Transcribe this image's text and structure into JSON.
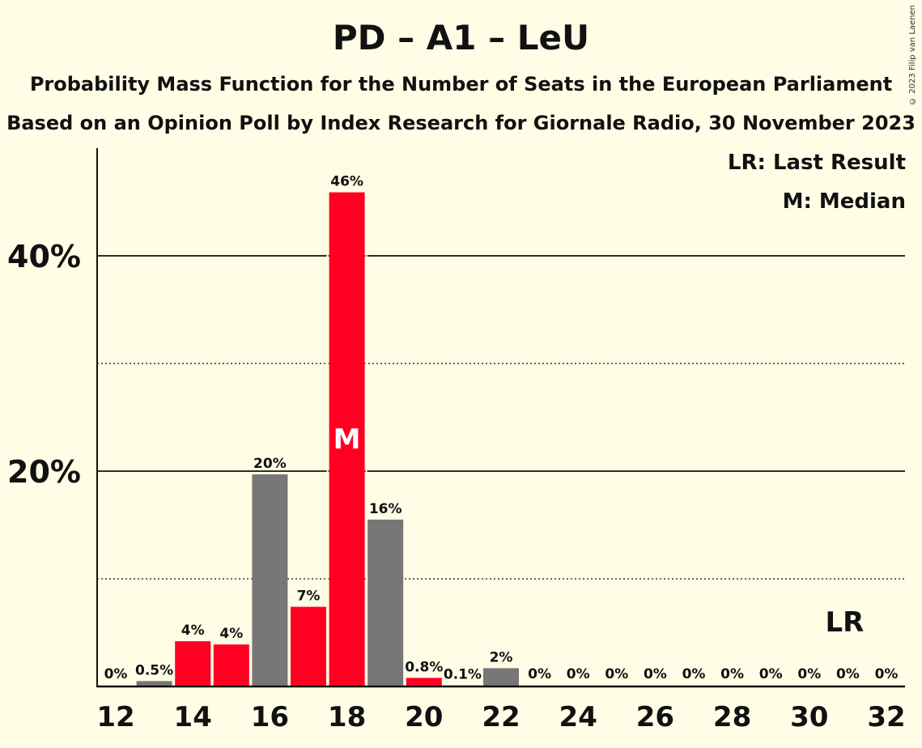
{
  "title": "PD – A1 – LeU",
  "subtitle1": "Probability Mass Function for the Number of Seats in the European Parliament",
  "subtitle2": "Based on an Opinion Poll by Index Research for Giornale Radio, 30 November 2023",
  "copyright": "© 2023 Filip van Laenen",
  "legend": {
    "last_result": "LR: Last Result",
    "median": "M: Median"
  },
  "colors": {
    "red": "#FF0022",
    "grey": "#777777",
    "background": "#FFFDE6"
  },
  "chart_data": {
    "type": "bar",
    "x": [
      12,
      13,
      14,
      15,
      16,
      17,
      18,
      19,
      20,
      21,
      22,
      23,
      24,
      25,
      26,
      27,
      28,
      29,
      30,
      31,
      32
    ],
    "values": [
      0,
      0.5,
      4.2,
      3.9,
      19.7,
      7.4,
      45.9,
      15.5,
      0.8,
      0.1,
      1.7,
      0,
      0,
      0,
      0,
      0,
      0,
      0,
      0,
      0,
      0
    ],
    "labels": [
      "0%",
      "0.5%",
      "4%",
      "4%",
      "20%",
      "7%",
      "46%",
      "16%",
      "0.8%",
      "0.1%",
      "2%",
      "0%",
      "0%",
      "0%",
      "0%",
      "0%",
      "0%",
      "0%",
      "0%",
      "0%",
      "0%"
    ],
    "bar_colors": [
      "grey",
      "grey",
      "red",
      "red",
      "grey",
      "red",
      "red",
      "grey",
      "red",
      "grey",
      "grey",
      "grey",
      "grey",
      "grey",
      "grey",
      "grey",
      "grey",
      "grey",
      "grey",
      "grey",
      "grey"
    ],
    "xticks": [
      "12",
      "14",
      "16",
      "18",
      "20",
      "22",
      "24",
      "26",
      "28",
      "30",
      "32"
    ],
    "yticks": [
      {
        "value": 20,
        "label": "20%"
      },
      {
        "value": 40,
        "label": "40%"
      }
    ],
    "minor_gridlines": [
      10,
      30
    ],
    "ylim": [
      0,
      50
    ],
    "median": {
      "x": 18,
      "label": "M"
    },
    "last_result": {
      "x": 31,
      "label": "LR"
    }
  }
}
